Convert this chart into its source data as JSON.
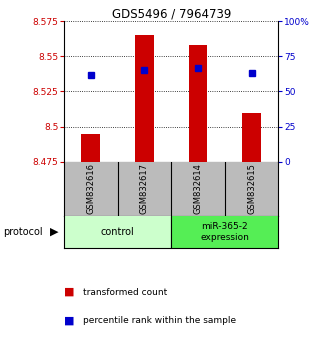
{
  "title": "GDS5496 / 7964739",
  "samples": [
    "GSM832616",
    "GSM832617",
    "GSM832614",
    "GSM832615"
  ],
  "transformed_counts": [
    8.495,
    8.565,
    8.558,
    8.51
  ],
  "percentile_ranks": [
    8.537,
    8.54,
    8.542,
    8.538
  ],
  "bar_bottom": 8.475,
  "ylim": [
    8.475,
    8.575
  ],
  "yticks_left": [
    8.475,
    8.5,
    8.525,
    8.55,
    8.575
  ],
  "yticks_right": [
    0,
    25,
    50,
    75,
    100
  ],
  "bar_color": "#cc0000",
  "marker_color": "#0000cc",
  "bg_plot": "#ffffff",
  "bg_sample_row": "#bbbbbb",
  "bg_group_control": "#ccffcc",
  "bg_group_mirna": "#55ee55",
  "left_label_color": "#cc0000",
  "right_label_color": "#0000cc",
  "legend_red_label": "transformed count",
  "legend_blue_label": "percentile rank within the sample",
  "protocol_label": "protocol"
}
